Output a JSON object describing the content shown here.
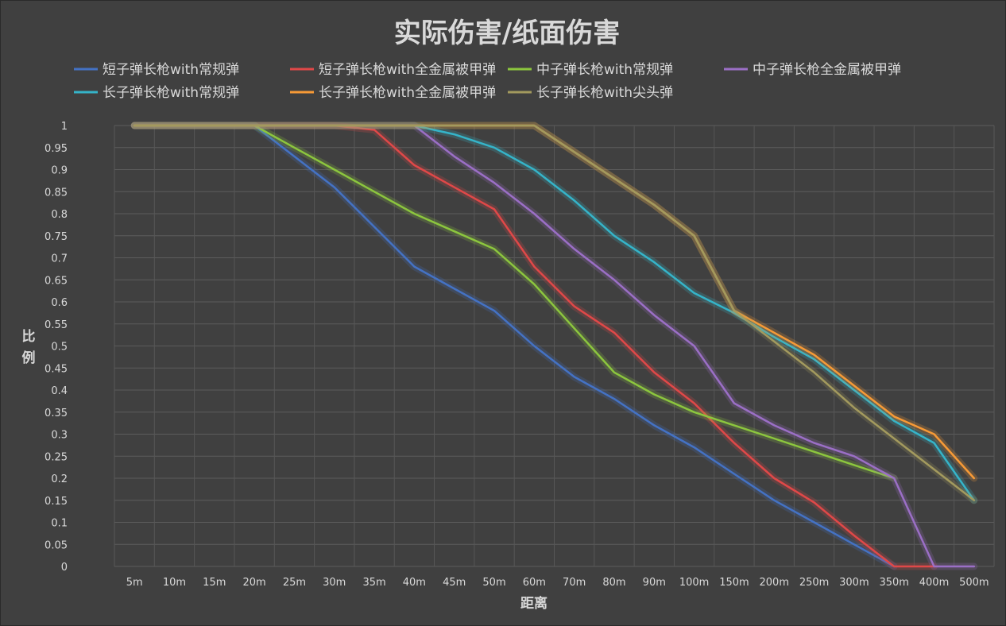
{
  "chart_data": {
    "type": "line",
    "title": "实际伤害/纸面伤害",
    "xlabel": "距离",
    "ylabel": "比例",
    "ylim": [
      0,
      1
    ],
    "ytick_step": 0.05,
    "yticks": [
      "0",
      "0.05",
      "0.1",
      "0.15",
      "0.2",
      "0.25",
      "0.3",
      "0.35",
      "0.4",
      "0.45",
      "0.5",
      "0.55",
      "0.6",
      "0.65",
      "0.7",
      "0.75",
      "0.8",
      "0.85",
      "0.9",
      "0.95",
      "1"
    ],
    "categories": [
      "5m",
      "10m",
      "15m",
      "20m",
      "25m",
      "30m",
      "35m",
      "40m",
      "45m",
      "50m",
      "60m",
      "70m",
      "80m",
      "90m",
      "100m",
      "150m",
      "200m",
      "250m",
      "300m",
      "350m",
      "400m",
      "500m"
    ],
    "grid": true,
    "legend_position": "top",
    "series": [
      {
        "name": "短子弹长枪with常规弹",
        "color": "#4472c4",
        "values": [
          1,
          1,
          1,
          1,
          0.93,
          0.86,
          0.77,
          0.68,
          0.63,
          0.58,
          0.5,
          0.43,
          0.38,
          0.32,
          0.27,
          0.21,
          0.15,
          0.1,
          0.05,
          0,
          null,
          null
        ]
      },
      {
        "name": "短子弹长枪with全金属被甲弹",
        "color": "#e04848",
        "values": [
          1,
          1,
          1,
          1,
          1,
          1,
          0.99,
          0.91,
          0.86,
          0.81,
          0.68,
          0.59,
          0.53,
          0.44,
          0.37,
          0.28,
          0.2,
          0.145,
          0.07,
          0,
          0,
          null
        ]
      },
      {
        "name": "中子弹长枪with常规弹",
        "color": "#8cc63e",
        "values": [
          1,
          1,
          1,
          1,
          0.95,
          0.9,
          0.85,
          0.8,
          0.76,
          0.72,
          0.64,
          0.54,
          0.44,
          0.39,
          0.35,
          0.32,
          0.29,
          0.26,
          0.23,
          0.2,
          null,
          null
        ]
      },
      {
        "name": "中子弹长枪全金属被甲弹",
        "color": "#9b6fc6",
        "values": [
          1,
          1,
          1,
          1,
          1,
          1,
          1,
          1,
          0.93,
          0.87,
          0.8,
          0.72,
          0.65,
          0.57,
          0.5,
          0.37,
          0.32,
          0.28,
          0.25,
          0.2,
          0,
          0
        ]
      },
      {
        "name": "长子弹长枪with常规弹",
        "color": "#35b4c9",
        "values": [
          1,
          1,
          1,
          1,
          1,
          1,
          1,
          1,
          0.98,
          0.95,
          0.9,
          0.83,
          0.75,
          0.69,
          0.62,
          0.575,
          0.52,
          0.47,
          0.4,
          0.33,
          0.28,
          0.15
        ]
      },
      {
        "name": "长子弹长枪with全金属被甲弹",
        "color": "#f79a36",
        "values": [
          1,
          1,
          1,
          1,
          1,
          1,
          1,
          1,
          1,
          1,
          1,
          0.94,
          0.88,
          0.82,
          0.75,
          0.58,
          0.53,
          0.48,
          0.41,
          0.34,
          0.3,
          0.2
        ]
      },
      {
        "name": "长子弹长枪with尖头弹",
        "color": "#a39a5e",
        "values": [
          1,
          1,
          1,
          1,
          1,
          1,
          1,
          1,
          1,
          1,
          1,
          0.94,
          0.88,
          0.82,
          0.75,
          0.58,
          0.51,
          0.44,
          0.36,
          0.29,
          0.22,
          0.15
        ]
      }
    ]
  }
}
